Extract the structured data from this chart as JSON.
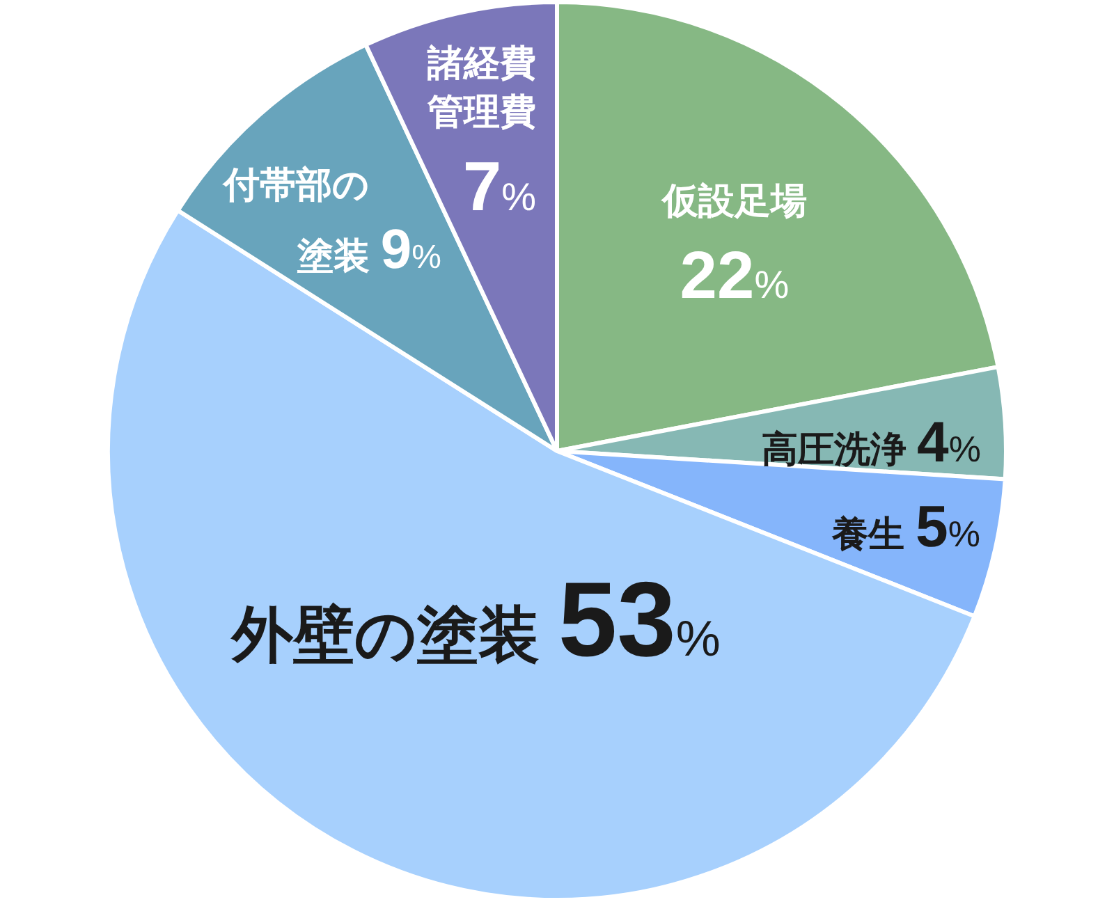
{
  "chart_data": {
    "type": "pie",
    "categories": [
      "仮設足場",
      "高圧洗浄",
      "養生",
      "外壁の塗装",
      "付帯部の塗装",
      "諸経費管理費"
    ],
    "values": [
      22,
      4,
      5,
      53,
      9,
      7
    ],
    "value_labels": [
      "22%",
      "4%",
      "5%",
      "53%",
      "9%",
      "7%"
    ],
    "colors": [
      "#86b884",
      "#86b8b4",
      "#85b5fb",
      "#a7d0fd",
      "#68a4bc",
      "#7b77ba"
    ]
  }
}
